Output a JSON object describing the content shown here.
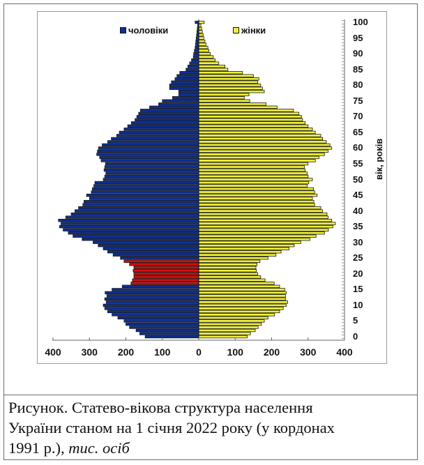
{
  "chart_data": {
    "type": "bar",
    "subtype": "population-pyramid",
    "title": "Статево-вікова структура населення України станом на 1 січня 2022 року (у кордонах 1991 р.)",
    "unit": "тис. осіб",
    "xlabel": "",
    "ylabel": "вік, років",
    "xlim": [
      -400,
      400
    ],
    "x_ticks": [
      "400",
      "300",
      "200",
      "100",
      "0",
      "100",
      "200",
      "300",
      "400"
    ],
    "y_ticks": [
      "0",
      "5",
      "10",
      "15",
      "20",
      "25",
      "30",
      "35",
      "40",
      "45",
      "50",
      "55",
      "60",
      "65",
      "70",
      "75",
      "80",
      "85",
      "90",
      "95",
      "100"
    ],
    "legend": [
      {
        "name": "чоловіки",
        "color": "#0d2f8f"
      },
      {
        "name": "жінки",
        "color": "#f0f03c"
      }
    ],
    "highlight": {
      "ages": [
        17,
        24
      ],
      "color": "#d40d0d",
      "series": "чоловіки"
    },
    "ages": [
      0,
      1,
      2,
      3,
      4,
      5,
      6,
      7,
      8,
      9,
      10,
      11,
      12,
      13,
      14,
      15,
      16,
      17,
      18,
      19,
      20,
      21,
      22,
      23,
      24,
      25,
      26,
      27,
      28,
      29,
      30,
      31,
      32,
      33,
      34,
      35,
      36,
      37,
      38,
      39,
      40,
      41,
      42,
      43,
      44,
      45,
      46,
      47,
      48,
      49,
      50,
      51,
      52,
      53,
      54,
      55,
      56,
      57,
      58,
      59,
      60,
      61,
      62,
      63,
      64,
      65,
      66,
      67,
      68,
      69,
      70,
      71,
      72,
      73,
      74,
      75,
      76,
      77,
      78,
      79,
      80,
      81,
      82,
      83,
      84,
      85,
      86,
      87,
      88,
      89,
      90,
      91,
      92,
      93,
      94,
      95,
      96,
      97,
      98,
      99,
      100
    ],
    "series": [
      {
        "name": "чоловіки",
        "values": [
          147,
          162,
          172,
          190,
          200,
          205,
          222,
          238,
          250,
          258,
          262,
          254,
          258,
          252,
          257,
          238,
          210,
          186,
          182,
          178,
          178,
          180,
          178,
          190,
          205,
          215,
          235,
          250,
          262,
          276,
          290,
          320,
          345,
          358,
          372,
          382,
          378,
          385,
          365,
          350,
          340,
          330,
          318,
          315,
          300,
          308,
          295,
          292,
          288,
          285,
          262,
          258,
          255,
          260,
          258,
          256,
          268,
          272,
          280,
          278,
          275,
          265,
          250,
          240,
          225,
          218,
          205,
          195,
          185,
          175,
          170,
          165,
          160,
          135,
          110,
          100,
          72,
          55,
          55,
          80,
          80,
          75,
          65,
          60,
          52,
          35,
          30,
          25,
          20,
          15,
          14,
          12,
          10,
          9,
          8,
          7,
          6,
          5,
          4,
          3,
          10
        ]
      },
      {
        "name": "жінки",
        "values": [
          133,
          142,
          155,
          163,
          172,
          180,
          190,
          208,
          222,
          232,
          240,
          244,
          238,
          238,
          240,
          236,
          222,
          207,
          182,
          170,
          162,
          158,
          157,
          160,
          168,
          190,
          212,
          226,
          248,
          262,
          280,
          305,
          322,
          345,
          356,
          368,
          375,
          365,
          355,
          352,
          340,
          335,
          318,
          316,
          312,
          325,
          318,
          315,
          298,
          302,
          312,
          300,
          298,
          292,
          290,
          300,
          320,
          330,
          345,
          355,
          365,
          360,
          350,
          340,
          335,
          320,
          312,
          300,
          292,
          285,
          282,
          275,
          260,
          215,
          185,
          140,
          125,
          138,
          180,
          175,
          170,
          162,
          165,
          150,
          120,
          80,
          72,
          55,
          45,
          40,
          32,
          28,
          25,
          20,
          17,
          14,
          12,
          10,
          8,
          6,
          15
        ]
      }
    ]
  },
  "legend": {
    "male_label": "чоловіки",
    "female_label": "жінки"
  },
  "axes": {
    "y_title": "вік, років",
    "x_labels": [
      "400",
      "300",
      "200",
      "100",
      "0",
      "100",
      "200",
      "300",
      "400"
    ],
    "y_labels": [
      "100",
      "95",
      "90",
      "85",
      "80",
      "75",
      "70",
      "65",
      "60",
      "55",
      "50",
      "45",
      "40",
      "35",
      "30",
      "25",
      "20",
      "15",
      "10",
      "5",
      "0"
    ]
  },
  "caption": {
    "line1": "Рисунок. Статево-вікова структура населення",
    "line2": "України станом на 1 січня 2022 року (у кордонах",
    "line3_plain": "1991 р.), ",
    "line3_italic": "тис. осіб"
  },
  "colors": {
    "male": "#0d2f8f",
    "female": "#f0f03c",
    "highlight": "#d40d0d",
    "bar_outline": "#1a1a1a"
  }
}
